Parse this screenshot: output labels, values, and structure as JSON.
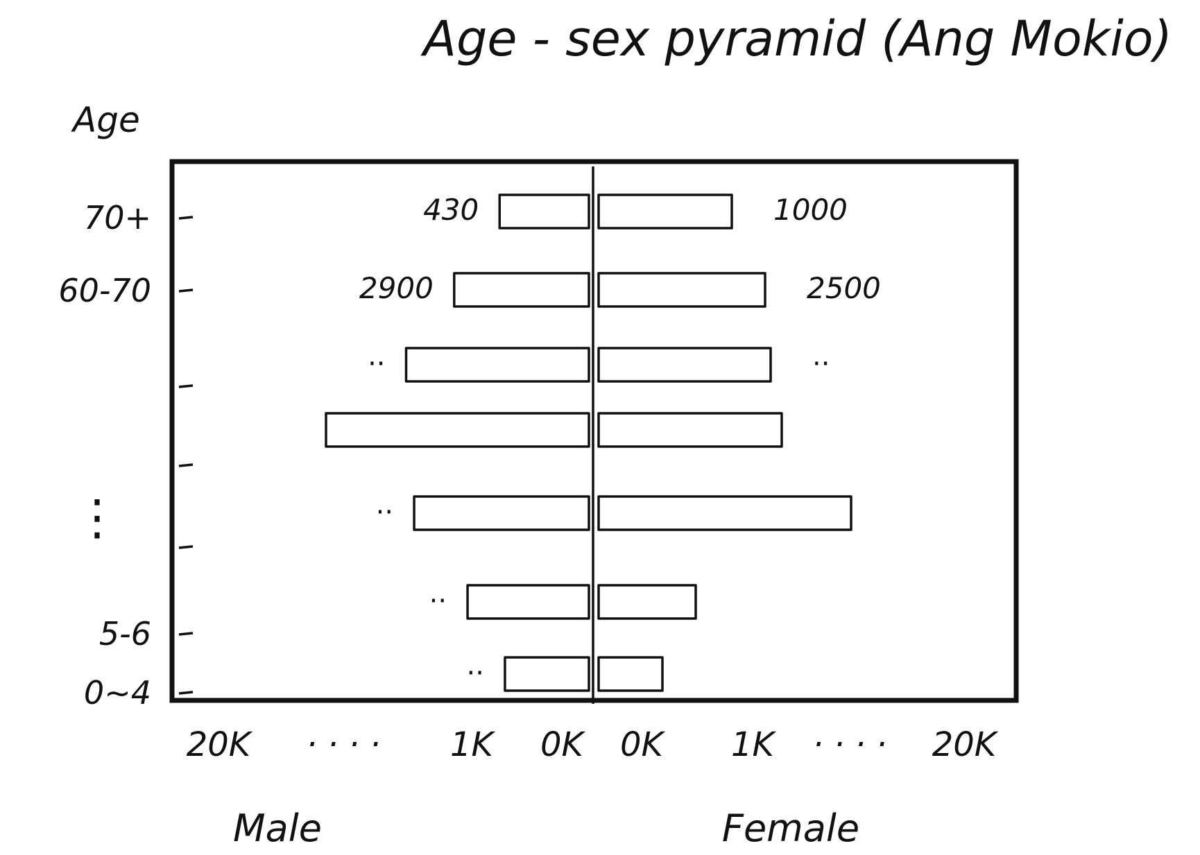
{
  "chart_data": {
    "type": "bar",
    "title": "Age - sex pyramid (Ang Mokio)",
    "ylabel": "Age",
    "x_tick_labels_left": [
      "20K",
      "· · · ·",
      "1K",
      "0K"
    ],
    "x_tick_labels_right": [
      "0K",
      "1K",
      "· · · ·",
      "20K"
    ],
    "y_tick_labels": [
      "70+",
      "60-70",
      "",
      "",
      "⋮",
      "5-6",
      "0~4"
    ],
    "series": [
      {
        "name": "Male",
        "values": [
          430,
          2900,
          null,
          null,
          null,
          null,
          null
        ],
        "labels": [
          "430",
          "2900",
          "··",
          "",
          "··",
          "··",
          "··"
        ]
      },
      {
        "name": "Female",
        "values": [
          1000,
          2500,
          null,
          null,
          null,
          null,
          null
        ],
        "labels": [
          "1000",
          "2500",
          "··",
          "",
          "",
          "",
          ""
        ]
      }
    ],
    "bar_lengths_relative": {
      "male": [
        0.35,
        0.52,
        0.7,
        1.0,
        0.67,
        0.47,
        0.33
      ],
      "female": [
        0.5,
        0.62,
        0.64,
        0.68,
        0.93,
        0.37,
        0.25
      ]
    }
  }
}
